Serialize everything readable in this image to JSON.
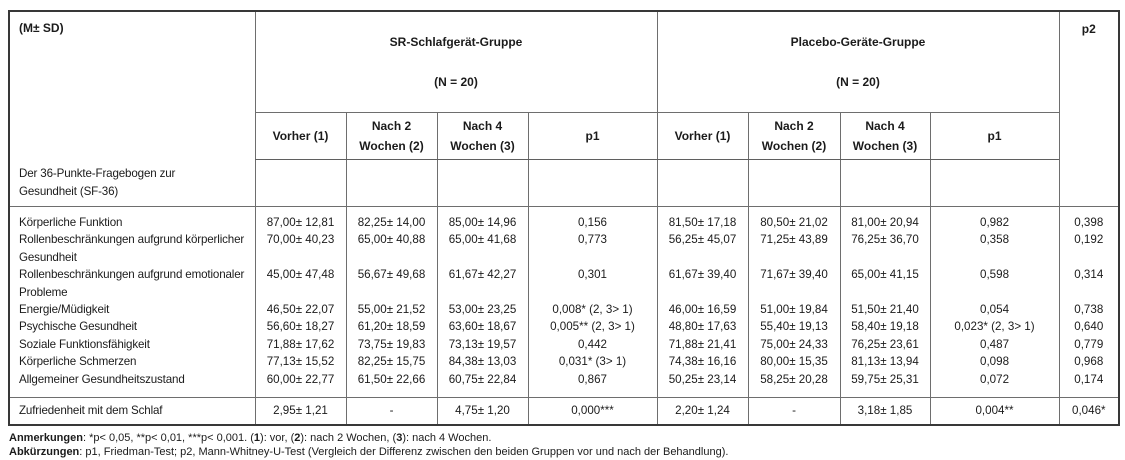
{
  "colors": {
    "background": "#ffffff",
    "text": "#1b1b1b",
    "border_outer": "#383838",
    "border_inner": "#6e6e6e"
  },
  "table": {
    "corner_label": "(M± SD)",
    "groups": [
      {
        "name": "SR-Schlafgerät-Gruppe",
        "n": "(N = 20)"
      },
      {
        "name": "Placebo-Geräte-Gruppe",
        "n": "(N = 20)"
      }
    ],
    "subheaders": [
      "Vorher (1)",
      "Nach 2\nWochen (2)",
      "Nach 4\nWochen (3)",
      "p1"
    ],
    "p2_label": "p2",
    "section_label": "Der 36-Punkte-Fragebogen zur\nGesundheit (SF-36)",
    "items": [
      {
        "label": "Körperliche Funktion",
        "values": [
          "87,00± 12,81",
          "82,25± 14,00",
          "85,00± 14,96",
          "0,156",
          "81,50± 17,18",
          "80,50± 21,02",
          "81,00± 20,94",
          "0,982",
          "0,398"
        ]
      },
      {
        "label": "Rollenbeschränkungen aufgrund körperlicher\nGesundheit",
        "values": [
          "70,00± 40,23",
          "65,00± 40,88",
          "65,00± 41,68",
          "0,773",
          "56,25± 45,07",
          "71,25± 43,89",
          "76,25± 36,70",
          "0,358",
          "0,192"
        ]
      },
      {
        "label": "Rollenbeschränkungen aufgrund emotionaler\nProbleme",
        "values": [
          "45,00± 47,48",
          "56,67± 49,68",
          "61,67± 42,27",
          "0,301",
          "61,67± 39,40",
          "71,67± 39,40",
          "65,00± 41,15",
          "0,598",
          "0,314"
        ]
      },
      {
        "label": "Energie/Müdigkeit",
        "values": [
          "46,50± 22,07",
          "55,00± 21,52",
          "53,00± 23,25",
          "0,008* (2, 3> 1)",
          "46,00± 16,59",
          "51,00± 19,84",
          "51,50± 21,40",
          "0,054",
          "0,738"
        ]
      },
      {
        "label": "Psychische Gesundheit",
        "values": [
          "56,60± 18,27",
          "61,20± 18,59",
          "63,60± 18,67",
          "0,005** (2, 3> 1)",
          "48,80± 17,63",
          "55,40± 19,13",
          "58,40± 19,18",
          "0,023* (2, 3> 1)",
          "0,640"
        ]
      },
      {
        "label": "Soziale Funktionsfähigkeit",
        "values": [
          "71,88± 17,62",
          "73,75± 19,83",
          "73,13± 19,57",
          "0,442",
          "71,88± 21,41",
          "75,00± 24,33",
          "76,25± 23,61",
          "0,487",
          "0,779"
        ]
      },
      {
        "label": "Körperliche Schmerzen",
        "values": [
          "77,13± 15,52",
          "82,25± 15,75",
          "84,38± 13,03",
          "0,031* (3> 1)",
          "74,38± 16,16",
          "80,00± 15,35",
          "81,13± 13,94",
          "0,098",
          "0,968"
        ]
      },
      {
        "label": "Allgemeiner Gesundheitszustand",
        "values": [
          "60,00± 22,77",
          "61,50± 22,66",
          "60,75± 22,84",
          "0,867",
          "50,25± 23,14",
          "58,25± 20,28",
          "59,75± 25,31",
          "0,072",
          "0,174"
        ]
      }
    ],
    "sleep_row": {
      "label": "Zufriedenheit mit dem Schlaf",
      "values": [
        "2,95± 1,21",
        "-",
        "4,75± 1,20",
        "0,000***",
        "2,20± 1,24",
        "-",
        "3,18± 1,85",
        "0,004**",
        "0,046*"
      ]
    }
  },
  "footnotes": [
    {
      "id": "anmerkungen",
      "segments": [
        {
          "t": "Anmerkungen",
          "b": true
        },
        {
          "t": ": *p< 0,05, **p< 0,01, ***p< 0,001. ("
        },
        {
          "t": "1",
          "b": true
        },
        {
          "t": "): vor, ("
        },
        {
          "t": "2",
          "b": true
        },
        {
          "t": "): nach 2 Wochen, ("
        },
        {
          "t": "3",
          "b": true
        },
        {
          "t": "): nach 4 Wochen."
        }
      ]
    },
    {
      "id": "abkuerzungen",
      "segments": [
        {
          "t": "Abkürzungen",
          "b": true
        },
        {
          "t": ": p1, Friedman-Test; p2, Mann-Whitney-U-Test (Vergleich der Differenz zwischen den beiden Gruppen vor und nach der Behandlung)."
        }
      ]
    }
  ]
}
